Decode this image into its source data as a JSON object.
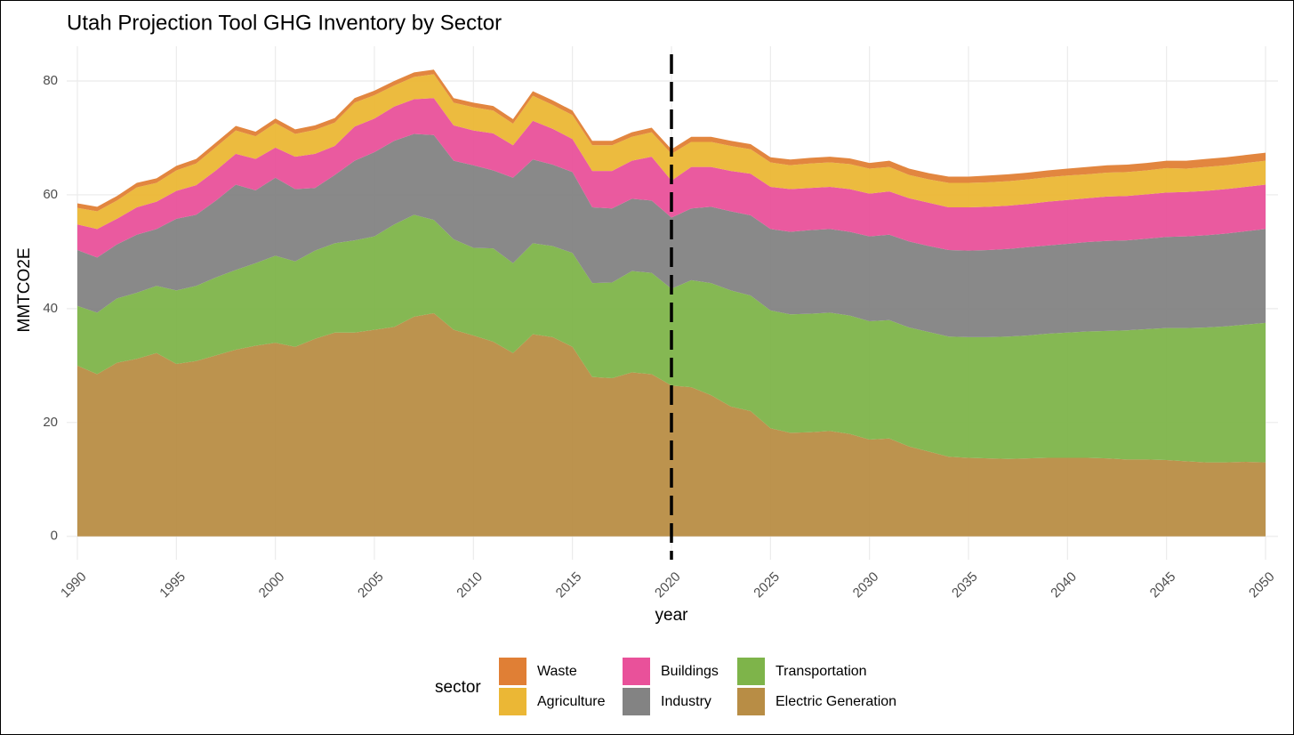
{
  "chart_data": {
    "type": "stacked_area",
    "title": "Utah Projection Tool GHG Inventory by Sector",
    "xlabel": "year",
    "ylabel": "MMTCO2E",
    "legend_title": "sector",
    "x": [
      1990,
      1991,
      1992,
      1993,
      1994,
      1995,
      1996,
      1997,
      1998,
      1999,
      2000,
      2001,
      2002,
      2003,
      2004,
      2005,
      2006,
      2007,
      2008,
      2009,
      2010,
      2011,
      2012,
      2013,
      2014,
      2015,
      2016,
      2017,
      2018,
      2019,
      2020,
      2021,
      2022,
      2023,
      2024,
      2025,
      2026,
      2027,
      2028,
      2029,
      2030,
      2031,
      2032,
      2033,
      2034,
      2035,
      2036,
      2037,
      2038,
      2039,
      2040,
      2041,
      2042,
      2043,
      2044,
      2045,
      2046,
      2047,
      2048,
      2049,
      2050
    ],
    "series": [
      {
        "name": "Waste",
        "color": "#e07f35",
        "values": [
          0.8,
          0.8,
          0.8,
          0.8,
          0.8,
          0.8,
          0.8,
          0.8,
          0.8,
          0.8,
          0.8,
          0.8,
          0.8,
          0.8,
          0.8,
          0.8,
          0.8,
          0.8,
          0.8,
          0.8,
          0.8,
          0.8,
          0.8,
          0.8,
          0.8,
          0.8,
          0.8,
          0.8,
          0.8,
          0.8,
          0.8,
          0.9,
          0.9,
          0.9,
          0.9,
          0.9,
          1.0,
          1.0,
          1.0,
          1.0,
          1.0,
          1.1,
          1.1,
          1.1,
          1.1,
          1.1,
          1.2,
          1.2,
          1.2,
          1.2,
          1.2,
          1.3,
          1.3,
          1.3,
          1.3,
          1.3,
          1.4,
          1.4,
          1.4,
          1.4,
          1.4
        ]
      },
      {
        "name": "Agriculture",
        "color": "#ebb735",
        "values": [
          2.9,
          3.1,
          3.2,
          3.5,
          3.3,
          3.6,
          3.8,
          4.1,
          4.1,
          4.0,
          4.3,
          4.0,
          4.2,
          4.1,
          4.2,
          4.1,
          3.7,
          3.9,
          4.2,
          4.0,
          4.1,
          4.0,
          3.8,
          4.4,
          4.2,
          4.2,
          4.5,
          4.5,
          4.2,
          4.3,
          4.7,
          4.4,
          4.4,
          4.4,
          4.3,
          4.3,
          4.2,
          4.3,
          4.3,
          4.4,
          4.4,
          4.3,
          4.1,
          4.1,
          4.3,
          4.3,
          4.3,
          4.3,
          4.3,
          4.3,
          4.3,
          4.2,
          4.2,
          4.2,
          4.2,
          4.3,
          4.1,
          4.2,
          4.2,
          4.2,
          4.2
        ]
      },
      {
        "name": "Buildings",
        "color": "#e9519a",
        "values": [
          4.5,
          5.0,
          4.5,
          4.8,
          4.8,
          4.9,
          5.2,
          5.3,
          5.4,
          5.5,
          5.3,
          5.7,
          6.0,
          5.1,
          6.0,
          5.9,
          6.0,
          6.1,
          6.5,
          6.2,
          6.1,
          6.5,
          5.7,
          6.8,
          6.3,
          5.8,
          6.4,
          6.6,
          6.7,
          7.7,
          6.5,
          7.3,
          7.0,
          7.1,
          7.3,
          7.4,
          7.5,
          7.4,
          7.4,
          7.5,
          7.5,
          7.6,
          7.6,
          7.6,
          7.5,
          7.6,
          7.6,
          7.6,
          7.6,
          7.7,
          7.7,
          7.7,
          7.8,
          7.8,
          7.8,
          7.8,
          7.8,
          7.8,
          7.8,
          7.8,
          7.8
        ]
      },
      {
        "name": "Industry",
        "color": "#838383",
        "values": [
          9.8,
          9.7,
          9.5,
          10.2,
          10.0,
          12.6,
          12.5,
          13.5,
          15.0,
          12.8,
          13.7,
          12.7,
          11.0,
          12.0,
          14.0,
          14.8,
          14.7,
          14.2,
          14.9,
          13.8,
          14.5,
          13.7,
          15.0,
          14.7,
          14.3,
          14.2,
          13.3,
          13.0,
          12.7,
          12.7,
          12.5,
          12.6,
          13.4,
          13.9,
          14.1,
          14.3,
          14.5,
          14.7,
          14.7,
          14.7,
          14.9,
          15.0,
          15.1,
          15.1,
          15.2,
          15.2,
          15.3,
          15.4,
          15.5,
          15.5,
          15.6,
          15.7,
          15.8,
          15.8,
          15.9,
          16.0,
          16.1,
          16.2,
          16.3,
          16.4,
          16.5
        ]
      },
      {
        "name": "Transportation",
        "color": "#7eb44a",
        "values": [
          10.5,
          10.8,
          11.3,
          11.6,
          11.8,
          12.9,
          13.2,
          13.7,
          14.0,
          14.5,
          15.3,
          15.0,
          15.5,
          15.7,
          16.2,
          16.4,
          18.0,
          17.9,
          16.4,
          15.9,
          15.4,
          16.4,
          15.8,
          16.0,
          16.0,
          16.5,
          16.5,
          16.8,
          17.8,
          17.8,
          17.0,
          18.8,
          19.7,
          20.4,
          20.3,
          20.7,
          20.8,
          20.8,
          20.8,
          20.8,
          20.8,
          20.8,
          20.9,
          21.0,
          21.1,
          21.2,
          21.3,
          21.5,
          21.6,
          21.8,
          22.0,
          22.2,
          22.4,
          22.7,
          22.9,
          23.2,
          23.4,
          23.7,
          23.9,
          24.1,
          24.5
        ]
      },
      {
        "name": "Electric Generation",
        "color": "#b88d45",
        "values": [
          30,
          28.5,
          30.5,
          31.2,
          32.2,
          30.3,
          30.8,
          31.8,
          32.8,
          33.5,
          34,
          33.3,
          34.7,
          35.8,
          35.8,
          36.3,
          36.8,
          38.6,
          39.2,
          36.3,
          35.3,
          34.2,
          32.2,
          35.5,
          35,
          33.3,
          28,
          27.8,
          28.8,
          28.5,
          26.5,
          26.2,
          24.8,
          22.8,
          22,
          19,
          18.2,
          18.3,
          18.5,
          18,
          17,
          17.2,
          15.8,
          14.9,
          14,
          13.8,
          13.7,
          13.6,
          13.7,
          13.8,
          13.8,
          13.8,
          13.7,
          13.5,
          13.5,
          13.4,
          13.2,
          13,
          13,
          13.1,
          13
        ]
      }
    ],
    "xlim": [
      1990,
      2050
    ],
    "xticks": [
      1990,
      1995,
      2000,
      2005,
      2010,
      2015,
      2020,
      2025,
      2030,
      2035,
      2040,
      2045,
      2050
    ],
    "ylim": [
      -4.1,
      86.1
    ],
    "yticks": [
      0,
      20,
      40,
      60,
      80
    ],
    "vline": 2020,
    "grid": true
  }
}
